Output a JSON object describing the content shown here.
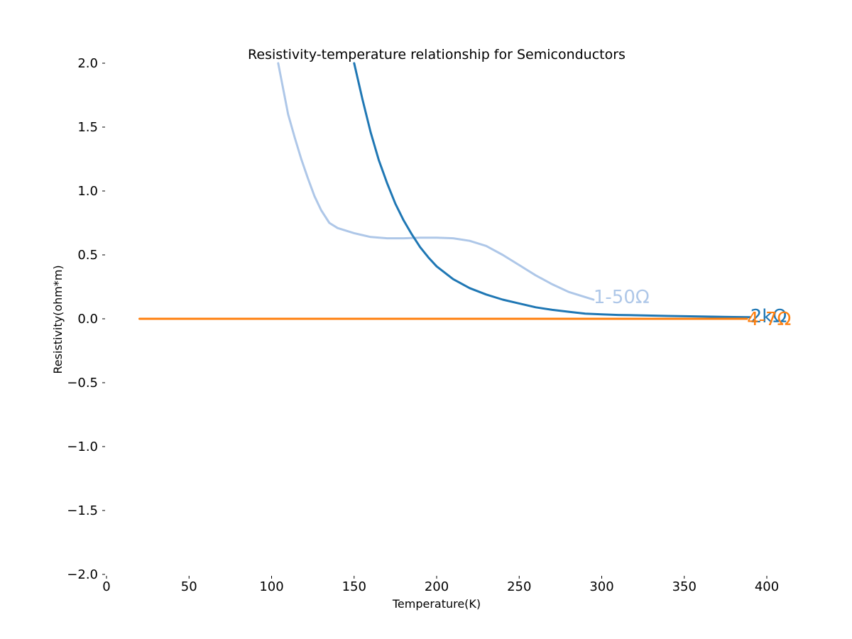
{
  "chart_data": {
    "type": "line",
    "title": "Resistivity-temperature relationship for Semiconductors",
    "xlabel": "Temperature(K)",
    "ylabel": "Resistivity(ohm*m)",
    "xlim": [
      0,
      400
    ],
    "ylim": [
      -2.0,
      2.0
    ],
    "x_ticks": [
      "0",
      "50",
      "100",
      "150",
      "200",
      "250",
      "300",
      "350",
      "400"
    ],
    "y_ticks": [
      "−2.0",
      "−1.5",
      "−1.0",
      "−0.5",
      "0.0",
      "0.5",
      "1.0",
      "1.5",
      "2.0"
    ],
    "grid": false,
    "series": [
      {
        "name": "1-50Ω",
        "color": "#aec7e8",
        "x": [
          104,
          107,
          110,
          114,
          118,
          122,
          126,
          130,
          135,
          140,
          150,
          160,
          170,
          180,
          190,
          200,
          210,
          220,
          230,
          240,
          250,
          260,
          270,
          280,
          290,
          295
        ],
        "y": [
          2.0,
          1.8,
          1.6,
          1.42,
          1.25,
          1.1,
          0.96,
          0.85,
          0.75,
          0.71,
          0.67,
          0.64,
          0.63,
          0.63,
          0.635,
          0.635,
          0.63,
          0.61,
          0.57,
          0.5,
          0.42,
          0.34,
          0.27,
          0.21,
          0.17,
          0.15
        ]
      },
      {
        "name": "2kΩ",
        "color": "#1f77b4",
        "x": [
          150,
          155,
          160,
          165,
          170,
          175,
          180,
          185,
          190,
          195,
          200,
          210,
          220,
          230,
          240,
          250,
          260,
          270,
          280,
          290,
          300,
          310,
          320,
          340,
          360,
          380,
          390
        ],
        "y": [
          2.0,
          1.72,
          1.46,
          1.24,
          1.06,
          0.9,
          0.77,
          0.66,
          0.56,
          0.48,
          0.41,
          0.31,
          0.24,
          0.19,
          0.15,
          0.12,
          0.09,
          0.07,
          0.055,
          0.04,
          0.035,
          0.03,
          0.028,
          0.022,
          0.018,
          0.014,
          0.012
        ]
      },
      {
        "name": "4-7Ω",
        "color": "#ff7f0e",
        "x": [
          20,
          100,
          200,
          300,
          388
        ],
        "y": [
          0.0,
          0.0,
          0.0,
          0.0,
          0.0
        ]
      }
    ]
  }
}
